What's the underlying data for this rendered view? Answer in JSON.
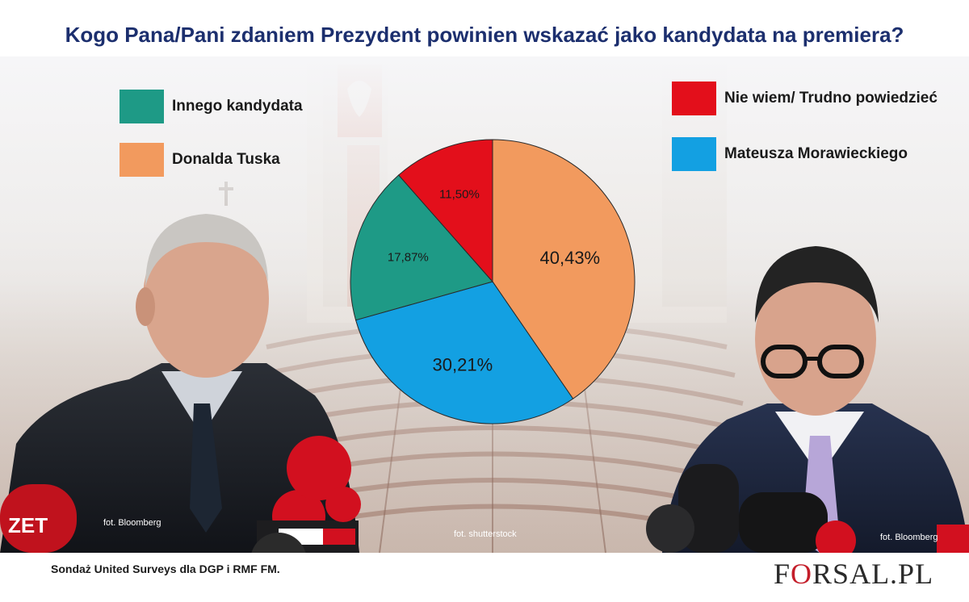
{
  "title": "Kogo Pana/Pani zdaniem Prezydent powinien wskazać jako kandydata na premiera?",
  "legend": [
    {
      "label": "Innego kandydata",
      "color": "#1e9a86"
    },
    {
      "label": "Donalda Tuska",
      "color": "#f29a5e"
    },
    {
      "label": "Nie wiem/ Trudno powiedzieć",
      "color": "#e30f1b"
    },
    {
      "label": "Mateusza Morawieckiego",
      "color": "#13a0e2"
    }
  ],
  "chart_data": {
    "type": "pie",
    "title": "Kogo Pana/Pani zdaniem Prezydent powinien wskazać jako kandydata na premiera?",
    "slices": [
      {
        "label": "Donalda Tuska",
        "value": 40.43,
        "display": "40,43%",
        "color": "#f29a5e"
      },
      {
        "label": "Mateusza Morawieckiego",
        "value": 30.21,
        "display": "30,21%",
        "color": "#13a0e2"
      },
      {
        "label": "Innego kandydata",
        "value": 17.87,
        "display": "17,87%",
        "color": "#1e9a86"
      },
      {
        "label": "Nie wiem/ Trudno powiedzieć",
        "value": 11.5,
        "display": "11,50%",
        "color": "#e30f1b"
      }
    ],
    "start": "top, clockwise",
    "legend_position": "top"
  },
  "credits": {
    "left_photo": "fot. Bloomberg",
    "center_photo": "fot. shutterstock",
    "right_photo": "fot. Bloomberg"
  },
  "footer": {
    "source": "Sondaż United Surveys dla DGP i RMF FM.",
    "logo_f": "F",
    "logo_o": "O",
    "logo_rest": "RSAL.PL"
  },
  "photos": {
    "left_subject": "man-with-microphones",
    "right_subject": "man-with-glasses"
  }
}
